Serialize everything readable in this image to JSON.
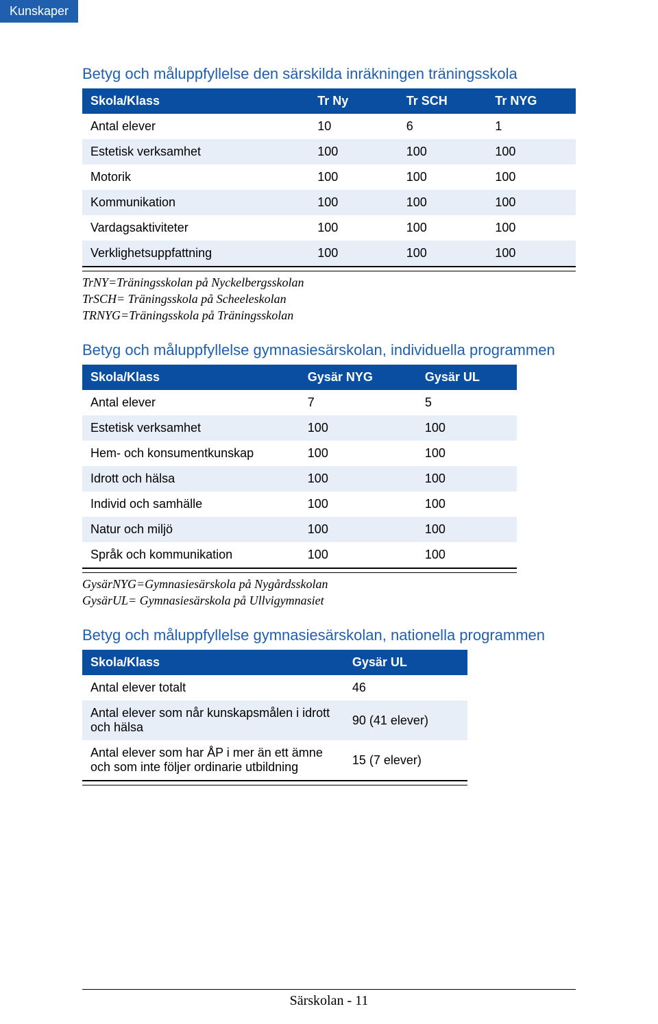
{
  "tab_label": "Kunskaper",
  "colors": {
    "header_bg": "#0a4ea2",
    "header_fg": "#ffffff",
    "row_alt": "#e8eef8",
    "title": "#1f5fae"
  },
  "table1": {
    "title": "Betyg och måluppfyllelse den särskilda inräkningen träningsskola",
    "columns": [
      "Skola/Klass",
      "Tr Ny",
      "Tr SCH",
      "Tr NYG"
    ],
    "rows": [
      [
        "Antal elever",
        "10",
        "6",
        "1"
      ],
      [
        "Estetisk verksamhet",
        "100",
        "100",
        "100"
      ],
      [
        "Motorik",
        "100",
        "100",
        "100"
      ],
      [
        "Kommunikation",
        "100",
        "100",
        "100"
      ],
      [
        "Vardagsaktiviteter",
        "100",
        "100",
        "100"
      ],
      [
        "Verklighetsuppfattning",
        "100",
        "100",
        "100"
      ]
    ],
    "caption_lines": [
      "TrNY=Träningsskolan på Nyckelbergsskolan",
      "TrSCH= Träningsskola på Scheeleskolan",
      "TRNYG=Träningsskola på Träningsskolan"
    ]
  },
  "table2": {
    "title": "Betyg och måluppfyllelse gymnasiesärskolan, individuella programmen",
    "columns": [
      "Skola/Klass",
      "Gysär NYG",
      "Gysär UL"
    ],
    "rows": [
      [
        "Antal elever",
        "7",
        "5"
      ],
      [
        "Estetisk verksamhet",
        "100",
        "100"
      ],
      [
        "Hem- och konsumentkunskap",
        "100",
        "100"
      ],
      [
        "Idrott och hälsa",
        "100",
        "100"
      ],
      [
        "Individ och samhälle",
        "100",
        "100"
      ],
      [
        "Natur och miljö",
        "100",
        "100"
      ],
      [
        "Språk och kommunikation",
        "100",
        "100"
      ]
    ],
    "caption_lines": [
      "GysärNYG=Gymnasiesärskola på Nygårdsskolan",
      "GysärUL= Gymnasiesärskola på Ullvigymnasiet"
    ]
  },
  "table3": {
    "title": "Betyg och måluppfyllelse gymnasiesärskolan, nationella programmen",
    "columns": [
      "Skola/Klass",
      "Gysär UL"
    ],
    "rows": [
      [
        "Antal elever totalt",
        "46"
      ],
      [
        "Antal elever som når kunskapsmålen i idrott och hälsa",
        "90 (41 elever)"
      ],
      [
        "Antal elever som har ÅP i mer än ett ämne och som inte följer ordinarie utbildning",
        "15 (7 elever)"
      ]
    ]
  },
  "footer": "Särskolan - 11"
}
